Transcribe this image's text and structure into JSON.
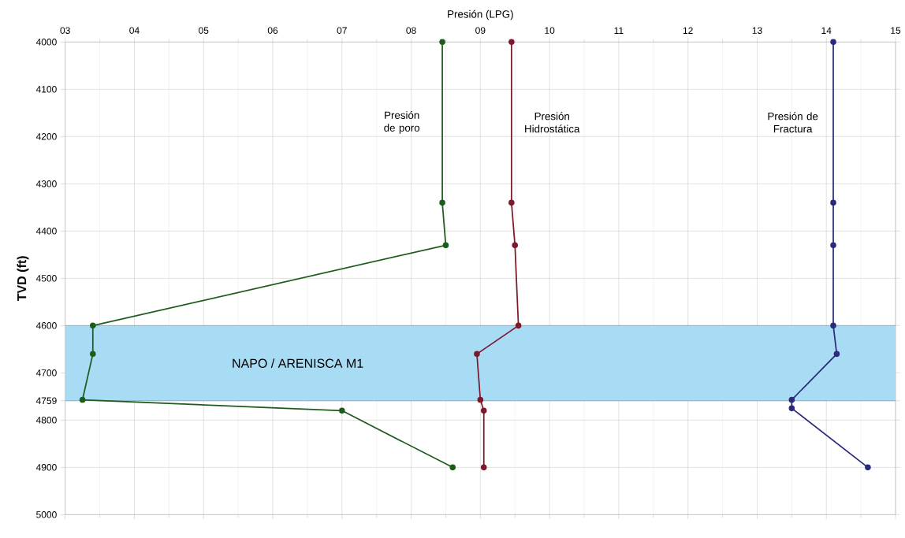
{
  "chart_data": {
    "type": "line",
    "xlabel": "Presión (LPG)",
    "ylabel": "TVD (ft)",
    "series": [
      {
        "name": "Presión de poro",
        "color": "#1e5b1e",
        "x": [
          8.45,
          8.45,
          8.5,
          3.4,
          3.4,
          3.25,
          7.0,
          8.6
        ],
        "values": [
          4000,
          4340,
          4430,
          4600,
          4660,
          4757,
          4780,
          4900
        ]
      },
      {
        "name": "Presión Hidrostática",
        "color": "#7b1a2a",
        "x": [
          9.45,
          9.45,
          9.5,
          9.55,
          8.95,
          9.0,
          9.05,
          9.05
        ],
        "values": [
          4000,
          4340,
          4430,
          4600,
          4660,
          4757,
          4780,
          4900
        ]
      },
      {
        "name": "Presión de Fractura",
        "color": "#2b2a7c",
        "x": [
          14.1,
          14.1,
          14.1,
          14.1,
          14.15,
          13.5,
          13.5,
          14.6
        ],
        "values": [
          4000,
          4340,
          4430,
          4600,
          4660,
          4757,
          4775,
          4900
        ]
      }
    ],
    "xlim": [
      3,
      15
    ],
    "xticks": [
      {
        "value": 3,
        "label": "03"
      },
      {
        "value": 4,
        "label": "04"
      },
      {
        "value": 5,
        "label": "05"
      },
      {
        "value": 6,
        "label": "06"
      },
      {
        "value": 7,
        "label": "07"
      },
      {
        "value": 8,
        "label": "08"
      },
      {
        "value": 9,
        "label": "09"
      },
      10,
      11,
      12,
      13,
      14,
      15
    ],
    "ylim": [
      5000,
      4000
    ],
    "yticks": [
      4000,
      4100,
      4200,
      4300,
      4400,
      4500,
      4600,
      4700,
      4759,
      4800,
      4900,
      5000
    ],
    "bands": [
      {
        "axis": "y",
        "from": 4600,
        "to": 4759,
        "label": "NAPO / ARENISCA M1",
        "color": "#a8dcf5"
      }
    ],
    "grid": true,
    "marker": "circle",
    "line_style": "solid"
  }
}
